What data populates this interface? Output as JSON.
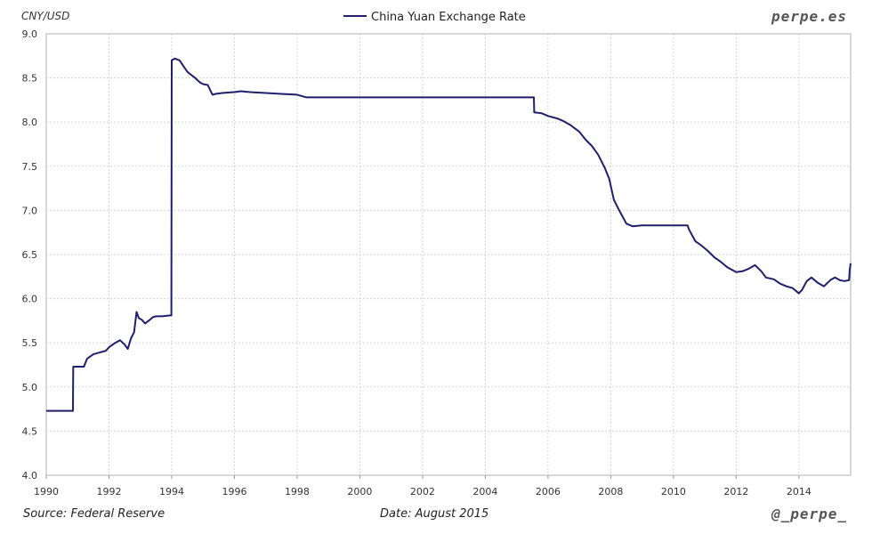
{
  "header": {
    "brand": "perpe.es"
  },
  "footer": {
    "source": "Source: Federal Reserve",
    "date": "Date: August 2015",
    "handle": "@_perpe_"
  },
  "chart_data": {
    "type": "line",
    "ylabel": "CNY/USD",
    "xlim": [
      1990,
      2015.65
    ],
    "ylim": [
      4.0,
      9.0
    ],
    "x_ticks": [
      "1990",
      "1992",
      "1994",
      "1996",
      "1998",
      "2000",
      "2002",
      "2004",
      "2006",
      "2008",
      "2010",
      "2012",
      "2014"
    ],
    "y_ticks": [
      "4.0",
      "4.5",
      "5.0",
      "5.5",
      "6.0",
      "6.5",
      "7.0",
      "7.5",
      "8.0",
      "8.5",
      "9.0"
    ],
    "grid": true,
    "legend_position": "top-center",
    "line_color": "#1f1f6e",
    "series": [
      {
        "name": "China Yuan Exchange Rate",
        "x": [
          1990.0,
          1990.85,
          1990.86,
          1991.2,
          1991.3,
          1991.5,
          1991.7,
          1991.9,
          1992.0,
          1992.2,
          1992.35,
          1992.5,
          1992.6,
          1992.7,
          1992.8,
          1992.88,
          1992.95,
          1993.05,
          1993.15,
          1993.3,
          1993.4,
          1993.5,
          1993.7,
          1993.95,
          1993.99,
          1994.0,
          1994.1,
          1994.25,
          1994.4,
          1994.5,
          1994.6,
          1994.75,
          1994.9,
          1995.0,
          1995.15,
          1995.3,
          1995.4,
          1995.6,
          1996.0,
          1996.2,
          1996.5,
          1997.0,
          1997.5,
          1998.0,
          1998.3,
          1998.5,
          1998.8,
          1999.0,
          2000.0,
          2001.0,
          2002.0,
          2003.0,
          2004.0,
          2005.0,
          2005.55,
          2005.56,
          2005.8,
          2006.0,
          2006.3,
          2006.5,
          2006.7,
          2007.0,
          2007.2,
          2007.4,
          2007.6,
          2007.8,
          2007.95,
          2008.1,
          2008.3,
          2008.5,
          2008.7,
          2009.0,
          2009.5,
          2010.0,
          2010.45,
          2010.5,
          2010.7,
          2010.9,
          2011.1,
          2011.3,
          2011.5,
          2011.7,
          2011.85,
          2012.0,
          2012.2,
          2012.4,
          2012.6,
          2012.8,
          2012.95,
          2013.2,
          2013.4,
          2013.6,
          2013.8,
          2014.0,
          2014.1,
          2014.25,
          2014.4,
          2014.6,
          2014.8,
          2015.0,
          2015.15,
          2015.3,
          2015.45,
          2015.6,
          2015.62,
          2015.65
        ],
        "y": [
          4.73,
          4.73,
          5.23,
          5.23,
          5.32,
          5.37,
          5.39,
          5.41,
          5.45,
          5.5,
          5.53,
          5.48,
          5.43,
          5.55,
          5.62,
          5.85,
          5.78,
          5.76,
          5.72,
          5.76,
          5.79,
          5.8,
          5.8,
          5.81,
          5.81,
          8.7,
          8.72,
          8.7,
          8.62,
          8.57,
          8.54,
          8.5,
          8.45,
          8.43,
          8.42,
          8.31,
          8.32,
          8.33,
          8.34,
          8.35,
          8.34,
          8.33,
          8.32,
          8.31,
          8.28,
          8.28,
          8.28,
          8.28,
          8.28,
          8.28,
          8.28,
          8.28,
          8.28,
          8.28,
          8.28,
          8.11,
          8.1,
          8.07,
          8.04,
          8.01,
          7.97,
          7.89,
          7.8,
          7.73,
          7.63,
          7.49,
          7.36,
          7.12,
          6.98,
          6.85,
          6.82,
          6.83,
          6.83,
          6.83,
          6.83,
          6.78,
          6.65,
          6.6,
          6.54,
          6.47,
          6.42,
          6.36,
          6.33,
          6.3,
          6.31,
          6.34,
          6.38,
          6.31,
          6.24,
          6.22,
          6.17,
          6.14,
          6.12,
          6.06,
          6.1,
          6.2,
          6.24,
          6.18,
          6.14,
          6.21,
          6.24,
          6.21,
          6.2,
          6.21,
          6.32,
          6.4
        ]
      }
    ]
  }
}
